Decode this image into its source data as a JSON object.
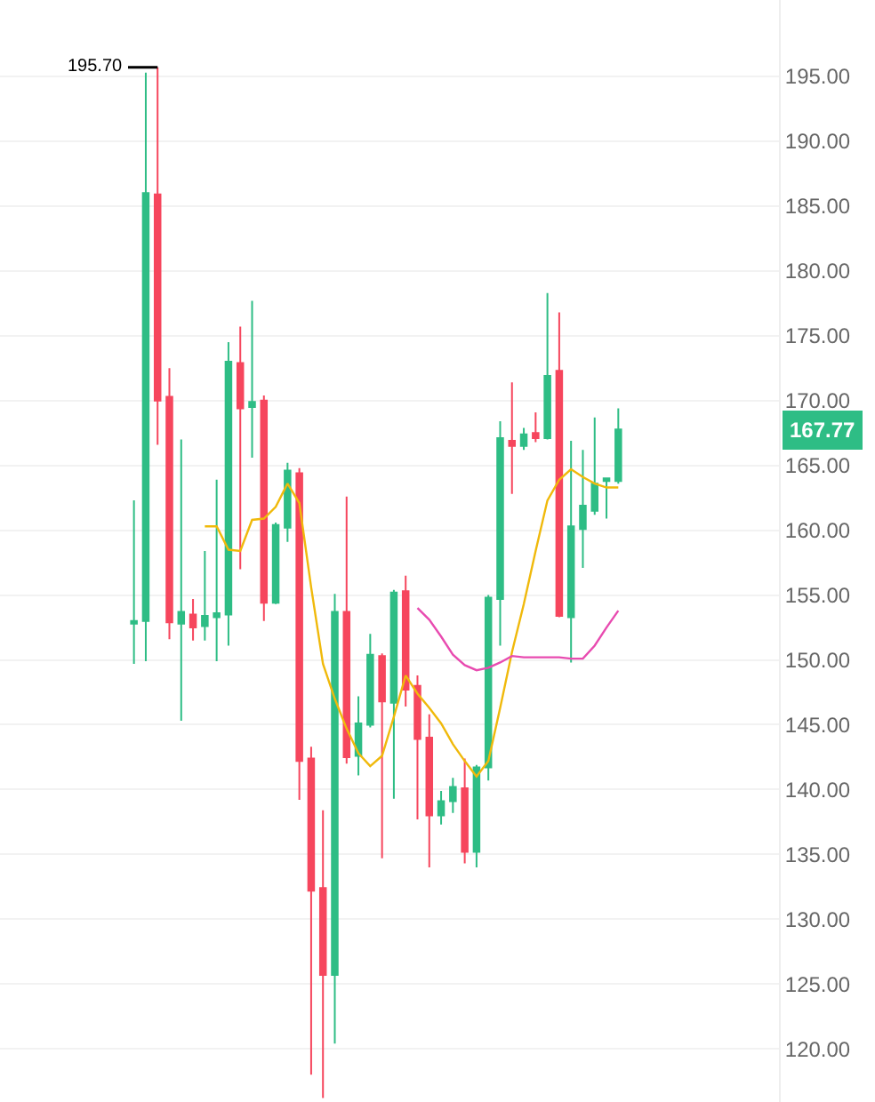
{
  "chart_data": {
    "type": "candlestick",
    "categories": [
      null,
      null,
      null,
      null,
      null,
      null,
      null,
      null,
      null,
      null,
      null,
      null,
      null,
      null,
      null,
      null,
      null,
      null,
      null,
      null,
      null,
      null,
      null,
      null,
      null,
      null,
      null,
      null,
      null,
      null,
      null,
      null,
      null,
      null,
      null,
      null,
      null,
      null,
      null,
      null,
      null,
      null
    ],
    "ohlc": [
      [
        152.8,
        162.3,
        149.7,
        153.0
      ],
      [
        153.0,
        195.3,
        149.9,
        186.0
      ],
      [
        185.9,
        195.7,
        166.6,
        170.0
      ],
      [
        170.3,
        172.5,
        151.6,
        152.9
      ],
      [
        152.8,
        167.0,
        145.3,
        153.7
      ],
      [
        153.5,
        154.7,
        151.5,
        152.5
      ],
      [
        152.6,
        158.4,
        151.5,
        153.4
      ],
      [
        153.3,
        163.9,
        149.9,
        153.6
      ],
      [
        153.5,
        174.5,
        151.1,
        173.0
      ],
      [
        172.9,
        175.7,
        157.0,
        169.4
      ],
      [
        169.5,
        177.7,
        165.6,
        169.9
      ],
      [
        170.0,
        170.4,
        153.0,
        154.4
      ],
      [
        154.4,
        160.6,
        154.3,
        160.4
      ],
      [
        160.2,
        165.2,
        159.1,
        164.6
      ],
      [
        164.4,
        164.8,
        139.2,
        142.2
      ],
      [
        142.4,
        143.3,
        118.0,
        132.2
      ],
      [
        132.4,
        138.4,
        116.2,
        125.7
      ],
      [
        125.7,
        155.1,
        120.4,
        153.7
      ],
      [
        153.7,
        162.6,
        142.0,
        142.5
      ],
      [
        142.6,
        147.2,
        141.1,
        145.1
      ],
      [
        145.0,
        152.0,
        144.8,
        150.4
      ],
      [
        150.3,
        150.5,
        134.7,
        146.8
      ],
      [
        146.7,
        155.4,
        139.3,
        155.2
      ],
      [
        155.3,
        156.5,
        146.4,
        147.7
      ],
      [
        148.0,
        148.8,
        137.7,
        143.9
      ],
      [
        144.0,
        145.8,
        134.0,
        138.0
      ],
      [
        138.0,
        139.9,
        137.3,
        139.1
      ],
      [
        139.1,
        140.9,
        138.2,
        140.2
      ],
      [
        140.1,
        142.4,
        134.3,
        135.2
      ],
      [
        135.2,
        141.9,
        134.0,
        141.7
      ],
      [
        141.7,
        155.0,
        140.7,
        154.8
      ],
      [
        154.7,
        168.4,
        151.1,
        167.1
      ],
      [
        166.9,
        171.4,
        162.8,
        166.5
      ],
      [
        166.5,
        167.9,
        166.2,
        167.4
      ],
      [
        167.5,
        169.1,
        166.8,
        167.1
      ],
      [
        167.1,
        178.3,
        167.0,
        171.9
      ],
      [
        172.3,
        176.8,
        153.3,
        153.4
      ],
      [
        153.3,
        166.9,
        149.8,
        160.3
      ],
      [
        160.1,
        166.2,
        157.1,
        161.9
      ],
      [
        161.5,
        168.7,
        161.2,
        163.6
      ],
      [
        163.8,
        164.0,
        160.9,
        164.0
      ],
      [
        163.8,
        169.4,
        163.6,
        167.77
      ]
    ],
    "colors": [
      "#2ebd85",
      "#2ebd85",
      "#f6465d",
      "#f6465d",
      "#2ebd85",
      "#f6465d",
      "#2ebd85",
      "#2ebd85",
      "#2ebd85",
      "#f6465d",
      "#2ebd85",
      "#f6465d",
      "#2ebd85",
      "#2ebd85",
      "#f6465d",
      "#f6465d",
      "#f6465d",
      "#2ebd85",
      "#f6465d",
      "#2ebd85",
      "#2ebd85",
      "#f6465d",
      "#2ebd85",
      "#f6465d",
      "#f6465d",
      "#f6465d",
      "#2ebd85",
      "#2ebd85",
      "#f6465d",
      "#2ebd85",
      "#2ebd85",
      "#2ebd85",
      "#f6465d",
      "#2ebd85",
      "#f6465d",
      "#2ebd85",
      "#f6465d",
      "#2ebd85",
      "#2ebd85",
      "#2ebd85",
      "#2ebd85",
      "#2ebd85"
    ],
    "series": [
      {
        "type": "line",
        "color": "#f0b90b",
        "values": [
          null,
          null,
          null,
          null,
          null,
          null,
          160.3,
          160.3,
          158.5,
          158.4,
          160.8,
          160.9,
          161.8,
          163.6,
          162.1,
          155.6,
          149.7,
          147.0,
          144.7,
          142.8,
          141.8,
          142.6,
          145.6,
          148.8,
          147.4,
          146.3,
          145.1,
          143.5,
          142.2,
          141.0,
          142.2,
          146.3,
          150.6,
          154.3,
          158.4,
          162.3,
          163.9,
          164.7,
          164.1,
          163.6,
          163.3,
          163.3
        ]
      },
      {
        "type": "line",
        "color": "#e84bb0",
        "values": [
          null,
          null,
          null,
          null,
          null,
          null,
          null,
          null,
          null,
          null,
          null,
          null,
          null,
          null,
          null,
          null,
          null,
          null,
          null,
          null,
          null,
          null,
          null,
          null,
          154.0,
          153.1,
          151.8,
          150.4,
          149.6,
          149.2,
          149.4,
          149.8,
          150.3,
          150.2,
          150.2,
          150.2,
          150.2,
          150.1,
          150.1,
          151.1,
          152.5,
          153.8
        ]
      }
    ],
    "ylim": [
      115.9,
      200.9
    ],
    "yticks": [
      {
        "value": 120,
        "label": "120.00"
      },
      {
        "value": 125,
        "label": "125.00"
      },
      {
        "value": 130,
        "label": "130.00"
      },
      {
        "value": 135,
        "label": "135.00"
      },
      {
        "value": 140,
        "label": "140.00"
      },
      {
        "value": 145,
        "label": "145.00"
      },
      {
        "value": 150,
        "label": "150.00"
      },
      {
        "value": 155,
        "label": "155.00"
      },
      {
        "value": 160,
        "label": "160.00"
      },
      {
        "value": 165,
        "label": "165.00"
      },
      {
        "value": 170,
        "label": "170.00"
      },
      {
        "value": 175,
        "label": "175.00"
      },
      {
        "value": 180,
        "label": "180.00"
      },
      {
        "value": 185,
        "label": "185.00"
      },
      {
        "value": 190,
        "label": "190.00"
      },
      {
        "value": 195,
        "label": "195.00"
      }
    ],
    "annotations": [
      "195.70",
      "167.77"
    ],
    "grid": "y"
  }
}
